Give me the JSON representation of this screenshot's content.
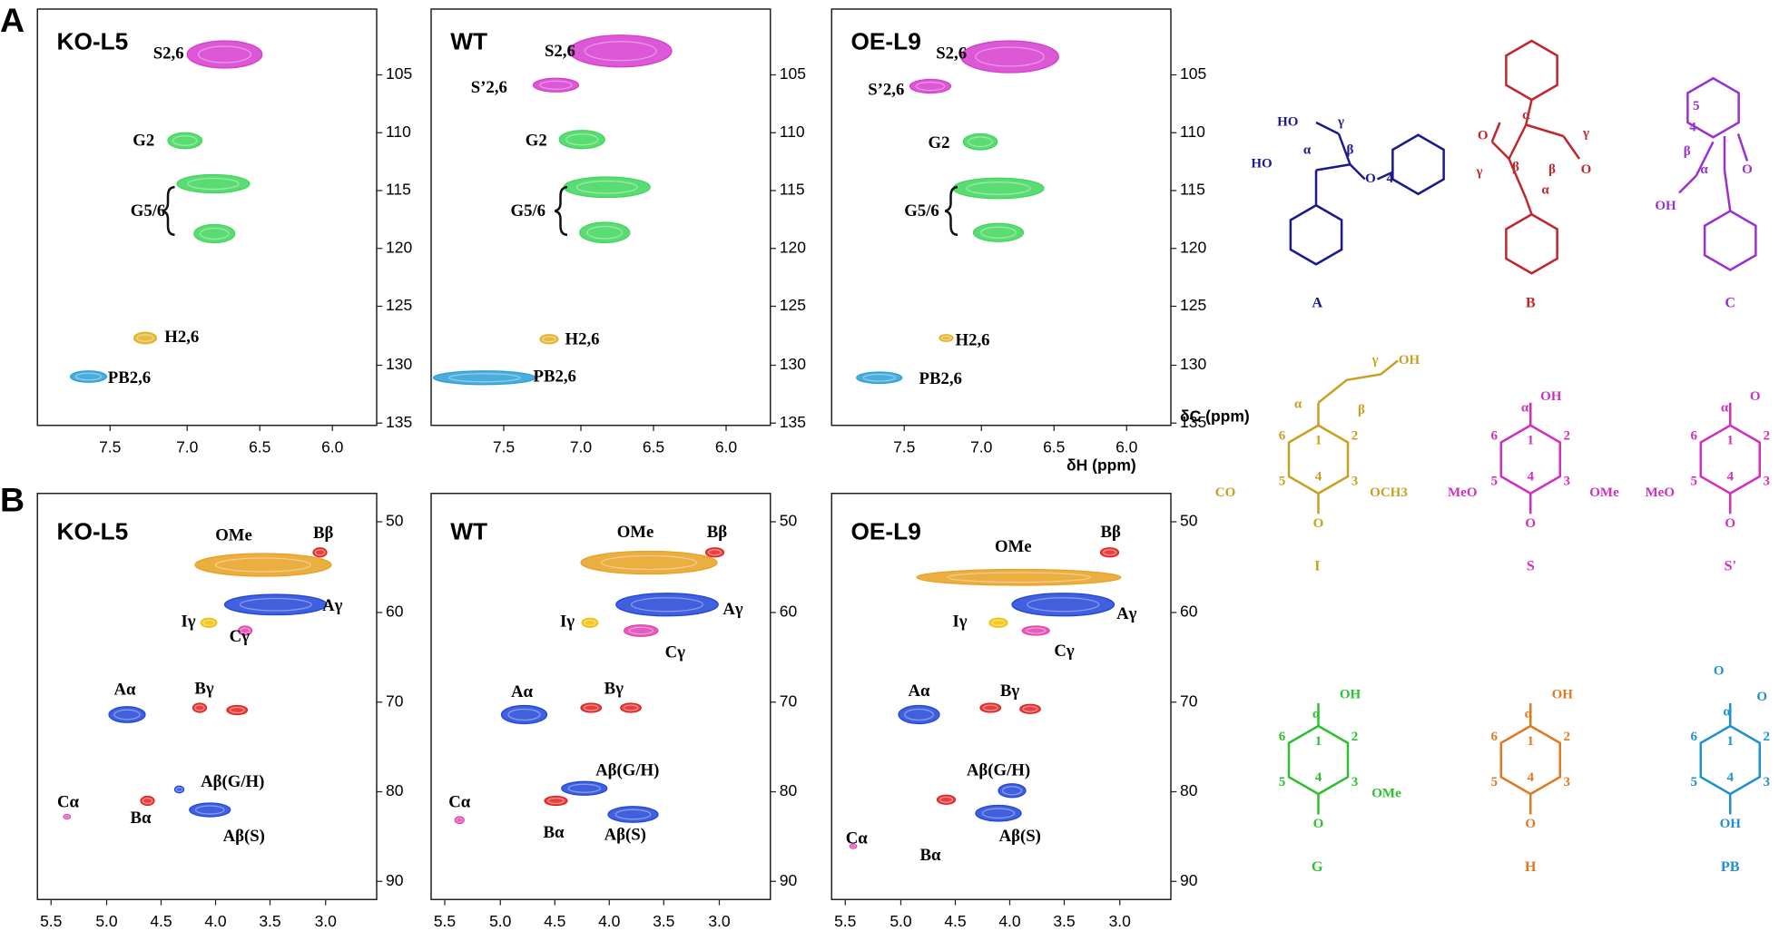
{
  "panels": [
    {
      "letter": "A",
      "x_ticks": [
        "7.5",
        "7.0",
        "6.5",
        "6.0"
      ],
      "y_ticks": [
        "105",
        "110",
        "115",
        "120",
        "125",
        "130",
        "135"
      ],
      "x_label": "δH (ppm)",
      "y_label": "δC (ppm)",
      "plots": [
        {
          "title": "KO-L5",
          "peaks": [
            "S2,6",
            "G2",
            "G5/6",
            "H2,6",
            "PB2,6"
          ]
        },
        {
          "title": "WT",
          "peaks": [
            "S2,6",
            "S’2,6",
            "G2",
            "G5/6",
            "H2,6",
            "PB2,6"
          ]
        },
        {
          "title": "OE-L9",
          "peaks": [
            "S2,6",
            "S’2,6",
            "G2",
            "G5/6",
            "H2,6",
            "PB2,6"
          ]
        }
      ]
    },
    {
      "letter": "B",
      "x_ticks": [
        "5.5",
        "5.0",
        "4.5",
        "4.0",
        "3.5",
        "3.0"
      ],
      "y_ticks": [
        "50",
        "60",
        "70",
        "80",
        "90"
      ],
      "plots": [
        {
          "title": "KO-L5",
          "peaks": [
            "OMe",
            "Bβ",
            "Aγ",
            "Iγ",
            "Cγ",
            "Aα",
            "Bγ",
            "Aβ(G/H)",
            "Aβ(S)",
            "Cα",
            "Bα"
          ]
        },
        {
          "title": "WT",
          "peaks": [
            "OMe",
            "Bβ",
            "Aγ",
            "Iγ",
            "Cγ",
            "Aα",
            "Bγ",
            "Aβ(G/H)",
            "Aβ(S)",
            "Cα",
            "Bα"
          ]
        },
        {
          "title": "OE-L9",
          "peaks": [
            "OMe",
            "Bβ",
            "Aγ",
            "Iγ",
            "Cγ",
            "Aα",
            "Bγ",
            "Aβ(G/H)",
            "Aβ(S)",
            "Cα",
            "Bα"
          ]
        }
      ]
    }
  ],
  "structures": [
    {
      "label": "A",
      "atoms": [
        "HO",
        "γ",
        "HO",
        "α",
        "β",
        "O",
        "4"
      ]
    },
    {
      "label": "B",
      "atoms": [
        "α",
        "β",
        "γ",
        "O",
        "O",
        "γ",
        "β",
        "α"
      ]
    },
    {
      "label": "C",
      "atoms": [
        "5",
        "4",
        "β",
        "α",
        "O",
        "OH"
      ]
    },
    {
      "label": "I",
      "atoms": [
        "γ",
        "OH",
        "α",
        "β",
        "1",
        "2",
        "3",
        "4",
        "5",
        "6",
        "OCH3",
        "CO",
        "O"
      ]
    },
    {
      "label": "S",
      "atoms": [
        "OH",
        "α",
        "1",
        "2",
        "3",
        "4",
        "5",
        "6",
        "MeO",
        "OMe",
        "O"
      ]
    },
    {
      "label": "S'",
      "atoms": [
        "O",
        "α",
        "1",
        "2",
        "3",
        "4",
        "5",
        "6",
        "MeO",
        "OMe",
        "O"
      ]
    },
    {
      "label": "G",
      "atoms": [
        "OH",
        "α",
        "1",
        "2",
        "3",
        "4",
        "5",
        "6",
        "OMe",
        "O"
      ]
    },
    {
      "label": "H",
      "atoms": [
        "OH",
        "α",
        "1",
        "2",
        "3",
        "4",
        "5",
        "6",
        "O"
      ]
    },
    {
      "label": "PB",
      "atoms": [
        "O",
        "O",
        "α",
        "1",
        "2",
        "3",
        "4",
        "5",
        "6",
        "OH"
      ]
    }
  ]
}
